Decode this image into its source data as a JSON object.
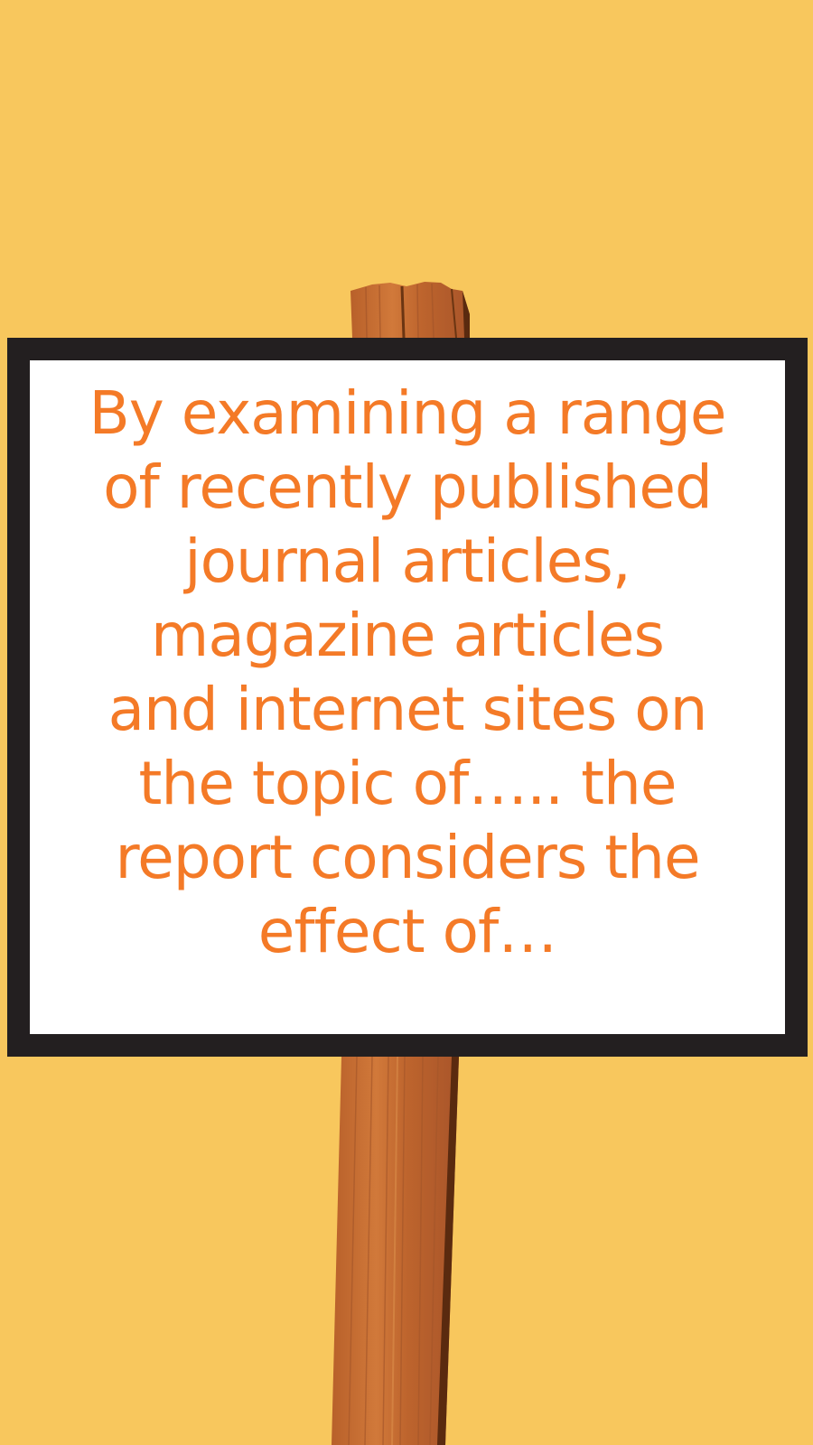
{
  "colors": {
    "background": "#f8c75d",
    "board_frame": "#231f20",
    "board_panel": "#ffffff",
    "text": "#f47a27",
    "wood_main": "#c46a2f",
    "wood_dark": "#5a2a0f",
    "wood_light": "#d9883d"
  },
  "sign": {
    "text": "By examining a range\nof recently published\njournal articles,\nmagazine articles\nand internet sites on\nthe topic of….. the\nreport considers the\neffect of…"
  }
}
